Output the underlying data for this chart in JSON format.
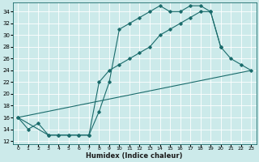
{
  "xlabel": "Humidex (Indice chaleur)",
  "bg_color": "#cceaea",
  "grid_color": "#ffffff",
  "line_color": "#1a6b6b",
  "xlim": [
    -0.5,
    23.5
  ],
  "ylim": [
    11.5,
    35.5
  ],
  "xticks": [
    0,
    1,
    2,
    3,
    4,
    5,
    6,
    7,
    8,
    9,
    10,
    11,
    12,
    13,
    14,
    15,
    16,
    17,
    18,
    19,
    20,
    21,
    22,
    23
  ],
  "yticks": [
    12,
    14,
    16,
    18,
    20,
    22,
    24,
    26,
    28,
    30,
    32,
    34
  ],
  "line1_x": [
    0,
    1,
    2,
    3,
    4,
    5,
    6,
    7,
    8,
    9,
    10,
    11,
    12,
    13,
    14,
    15,
    16,
    17,
    18,
    19,
    20,
    21,
    22,
    23
  ],
  "line1_y": [
    16,
    14,
    15,
    13,
    13,
    13,
    13,
    13,
    17,
    22,
    31,
    32,
    33,
    34,
    35,
    34,
    34,
    35,
    35,
    34,
    28,
    26,
    25,
    24
  ],
  "line2_x": [
    0,
    3,
    4,
    5,
    6,
    7,
    8,
    9,
    10,
    11,
    12,
    13,
    14,
    15,
    16,
    17,
    18,
    19,
    20
  ],
  "line2_y": [
    16,
    13,
    13,
    13,
    13,
    13,
    22,
    24,
    25,
    26,
    27,
    28,
    30,
    31,
    32,
    33,
    34,
    34,
    28
  ],
  "line3_x": [
    0,
    23
  ],
  "line3_y": [
    16,
    24
  ]
}
